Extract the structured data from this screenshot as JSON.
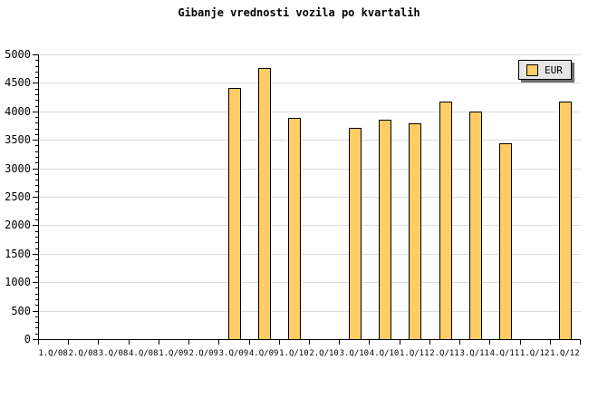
{
  "title": "Gibanje vrednosti vozila po kvartalih",
  "legend": {
    "label": "EUR",
    "position": "top-right",
    "swatch_color": "#ffcc66"
  },
  "colors": {
    "background": "#ffffff",
    "bar_fill": "#ffcc66",
    "bar_border": "#000000",
    "gridline": "#dcdcdc",
    "axis": "#000000",
    "legend_bg": "#e6e6e6",
    "legend_shadow": "#6e6e6e",
    "text": "#000000"
  },
  "chart_data": {
    "type": "bar",
    "title": "Gibanje vrednosti vozila po kvartalih",
    "categories": [
      "1.Q/08",
      "2.Q/08",
      "3.Q/08",
      "4.Q/08",
      "1.Q/09",
      "2.Q/09",
      "3.Q/09",
      "4.Q/09",
      "1.Q/10",
      "2.Q/10",
      "3.Q/10",
      "4.Q/10",
      "1.Q/11",
      "2.Q/11",
      "3.Q/11",
      "4.Q/11",
      "1.Q/12",
      "1.Q/12"
    ],
    "series": [
      {
        "name": "EUR",
        "values": [
          0,
          0,
          0,
          0,
          0,
          0,
          4410,
          4760,
          3890,
          0,
          3715,
          3850,
          3790,
          4180,
          3990,
          3440,
          0,
          4165
        ]
      }
    ],
    "xlabel": "",
    "ylabel": "",
    "ylim": [
      0,
      5000
    ],
    "y_tick_interval": 500,
    "y_minor_tick_interval": 100,
    "y_tick_labels": [
      "0",
      "500",
      "1000",
      "1500",
      "2000",
      "2500",
      "3000",
      "3500",
      "4000",
      "4500",
      "5000"
    ],
    "grid": true,
    "legend_position": "top-right"
  }
}
